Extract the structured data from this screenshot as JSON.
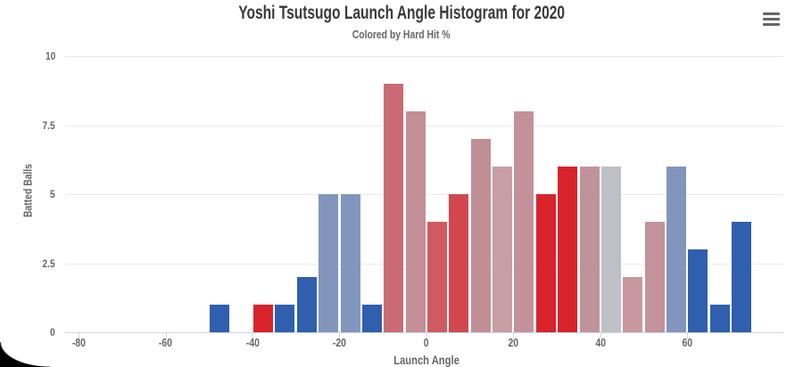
{
  "chart_data": {
    "type": "bar",
    "title": "Yoshi Tsutsugo Launch Angle Histogram for 2020",
    "subtitle": "Colored by Hard Hit %",
    "xlabel": "Launch Angle",
    "ylabel": "Batted Balls",
    "x_ticks": [
      -80,
      -60,
      -40,
      -20,
      0,
      20,
      40,
      60
    ],
    "y_ticks": [
      0,
      2.5,
      5,
      7.5,
      10
    ],
    "xlim": [
      -83.1,
      82.1
    ],
    "ylim": [
      0,
      10
    ],
    "bin_width": 5,
    "grid": true,
    "legend": "none",
    "bars": [
      {
        "x0": -50,
        "count": 1,
        "color": "#2f5fad"
      },
      {
        "x0": -40,
        "count": 1,
        "color": "#d8232b"
      },
      {
        "x0": -35,
        "count": 1,
        "color": "#2f5fad"
      },
      {
        "x0": -30,
        "count": 2,
        "color": "#2f5fad"
      },
      {
        "x0": -25,
        "count": 5,
        "color": "#8296bd"
      },
      {
        "x0": -20,
        "count": 5,
        "color": "#8296bd"
      },
      {
        "x0": -15,
        "count": 1,
        "color": "#2f5fad"
      },
      {
        "x0": -10,
        "count": 9,
        "color": "#ca6b73"
      },
      {
        "x0": -5,
        "count": 8,
        "color": "#c48f97"
      },
      {
        "x0": 0,
        "count": 4,
        "color": "#d15a60"
      },
      {
        "x0": 5,
        "count": 5,
        "color": "#d2474e"
      },
      {
        "x0": 10,
        "count": 7,
        "color": "#c28e96"
      },
      {
        "x0": 15,
        "count": 6,
        "color": "#c79ea4"
      },
      {
        "x0": 20,
        "count": 8,
        "color": "#c39199"
      },
      {
        "x0": 25,
        "count": 5,
        "color": "#d8232b"
      },
      {
        "x0": 30,
        "count": 6,
        "color": "#d8232b"
      },
      {
        "x0": 35,
        "count": 6,
        "color": "#c0939a"
      },
      {
        "x0": 40,
        "count": 6,
        "color": "#bfc0c6"
      },
      {
        "x0": 45,
        "count": 2,
        "color": "#c9989f"
      },
      {
        "x0": 50,
        "count": 4,
        "color": "#c3929a"
      },
      {
        "x0": 55,
        "count": 6,
        "color": "#8296bd"
      },
      {
        "x0": 60,
        "count": 3,
        "color": "#2f5fad"
      },
      {
        "x0": 65,
        "count": 1,
        "color": "#2f5fad"
      },
      {
        "x0": 70,
        "count": 4,
        "color": "#2f5fad"
      }
    ]
  },
  "colors": {
    "title": "#3a3a3a",
    "axis_label": "#666666",
    "grid_line": "#e8eaec",
    "axis_line": "#ccd6eb",
    "menu_icon": "#666666",
    "background": "#ffffff"
  },
  "icons": {
    "menu": "hamburger-icon"
  }
}
